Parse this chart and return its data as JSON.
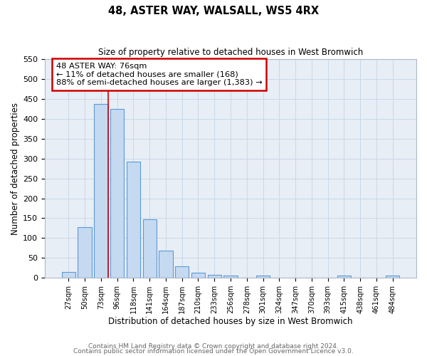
{
  "title": "48, ASTER WAY, WALSALL, WS5 4RX",
  "subtitle": "Size of property relative to detached houses in West Bromwich",
  "xlabel": "Distribution of detached houses by size in West Bromwich",
  "ylabel": "Number of detached properties",
  "bar_labels": [
    "27sqm",
    "50sqm",
    "73sqm",
    "96sqm",
    "118sqm",
    "141sqm",
    "164sqm",
    "187sqm",
    "210sqm",
    "233sqm",
    "256sqm",
    "278sqm",
    "301sqm",
    "324sqm",
    "347sqm",
    "370sqm",
    "393sqm",
    "415sqm",
    "438sqm",
    "461sqm",
    "484sqm"
  ],
  "bar_values": [
    15,
    128,
    438,
    425,
    292,
    148,
    68,
    29,
    13,
    7,
    5,
    0,
    5,
    0,
    0,
    0,
    0,
    5,
    0,
    0,
    5
  ],
  "bar_color": "#c5d9f1",
  "bar_edge_color": "#5b9bd5",
  "vline_color": "#cc0000",
  "ylim": [
    0,
    550
  ],
  "yticks": [
    0,
    50,
    100,
    150,
    200,
    250,
    300,
    350,
    400,
    450,
    500,
    550
  ],
  "annotation_box_text": "48 ASTER WAY: 76sqm\n← 11% of detached houses are smaller (168)\n88% of semi-detached houses are larger (1,383) →",
  "annotation_box_color": "#cc0000",
  "footer_line1": "Contains HM Land Registry data © Crown copyright and database right 2024.",
  "footer_line2": "Contains public sector information licensed under the Open Government Licence v3.0.",
  "grid_color": "#c8d8e8",
  "background_color": "#e8eef5"
}
